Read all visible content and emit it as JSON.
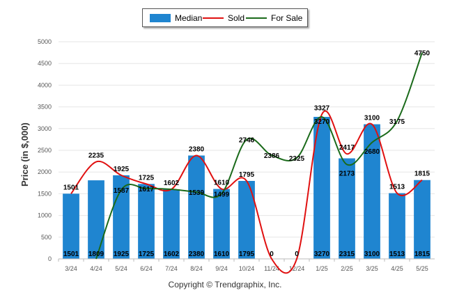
{
  "legend": {
    "median_label": "Median",
    "sold_label": "Sold",
    "forsale_label": "For Sale"
  },
  "credit": "Copyright © Trendgraphix, Inc.",
  "colors": {
    "bar": "#1f85d0",
    "sold": "#e01010",
    "forsale": "#1a6a1a",
    "grid": "#e6e6e6",
    "axis_text": "#555555"
  },
  "chart_data": {
    "type": "bar",
    "title": "",
    "xlabel": "",
    "ylabel": "Price (in $,000)",
    "ylim": [
      0,
      5000
    ],
    "yticks": [
      0,
      500,
      1000,
      1500,
      2000,
      2500,
      3000,
      3500,
      4000,
      4500,
      5000
    ],
    "grid": true,
    "legend_position": "top-center",
    "categories": [
      "3/24",
      "4/24",
      "5/24",
      "6/24",
      "7/24",
      "8/24",
      "9/24",
      "10/24",
      "11/24",
      "12/24",
      "1/25",
      "2/25",
      "3/25",
      "4/25",
      "5/25"
    ],
    "bar_base_labels": [
      "1501",
      "1809",
      "1925",
      "1725",
      "1602",
      "2380",
      "1610",
      "1795",
      "0",
      "0",
      "3270",
      "2315",
      "3100",
      "1513",
      "1815"
    ],
    "series": [
      {
        "name": "Median",
        "kind": "bar",
        "values": [
          1501,
          1809,
          1925,
          1725,
          1602,
          2380,
          1610,
          1795,
          0,
          0,
          3270,
          2315,
          3100,
          1513,
          1815
        ]
      },
      {
        "name": "Sold",
        "kind": "line",
        "values": [
          1501,
          2235,
          1925,
          1725,
          1602,
          2380,
          1610,
          1795,
          0,
          0,
          3327,
          2417,
          3100,
          1513,
          1815
        ],
        "labels": [
          "1501",
          "2235",
          "1925",
          "1725",
          "1602",
          "2380",
          "1610",
          "1795",
          "",
          "",
          "3327",
          "2417",
          "3100",
          "1513",
          "1815"
        ]
      },
      {
        "name": "For Sale",
        "kind": "line",
        "values": [
          null,
          0,
          1587,
          1617,
          1602,
          1539,
          1499,
          2746,
          2386,
          2325,
          3270,
          2173,
          2680,
          3175,
          4750
        ],
        "labels": [
          "",
          "",
          "1587",
          "1617",
          "",
          "1539",
          "1499",
          "2746",
          "2386",
          "2325",
          "3270",
          "2173",
          "2680",
          "3175",
          "4750"
        ]
      }
    ]
  }
}
